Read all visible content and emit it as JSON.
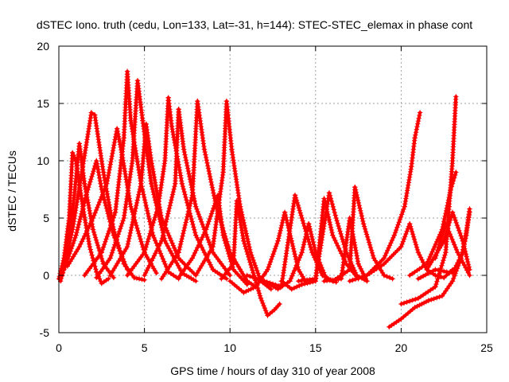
{
  "chart_data": {
    "type": "scatter",
    "title": "dSTEC Iono. truth (cedu, Lon=133, Lat=-31, h=144): STEC-STEC_elemax in phase cont",
    "xlabel": "GPS time / hours of day 310 of year 2008",
    "ylabel": "dSTEC  / TECUs",
    "xlim": [
      0,
      25
    ],
    "ylim": [
      -5,
      20
    ],
    "x_ticks": [
      "0",
      "5",
      "10",
      "15",
      "20",
      "25"
    ],
    "y_ticks": [
      "-5",
      "0",
      "5",
      "10",
      "15",
      "20"
    ],
    "grid": true,
    "marker": "+",
    "color": "#ff0000",
    "series": [
      {
        "arcs": [
          [
            0.0,
            -0.3
          ],
          [
            0.3,
            1.5
          ],
          [
            0.6,
            5.0
          ],
          [
            0.8,
            10.7
          ],
          [
            1.0,
            10.0
          ],
          [
            1.4,
            6.0
          ],
          [
            1.8,
            2.5
          ],
          [
            2.2,
            0.3
          ],
          [
            2.5,
            -0.7
          ],
          [
            2.9,
            -0.3
          ]
        ]
      },
      {
        "arcs": [
          [
            0.1,
            -0.5
          ],
          [
            0.5,
            2.0
          ],
          [
            0.9,
            7.0
          ],
          [
            1.2,
            11.5
          ],
          [
            1.5,
            8.0
          ],
          [
            2.0,
            4.0
          ],
          [
            2.6,
            1.0
          ],
          [
            3.2,
            -0.2
          ]
        ]
      },
      {
        "arcs": [
          [
            0.2,
            0.0
          ],
          [
            0.8,
            4.0
          ],
          [
            1.4,
            9.5
          ],
          [
            1.9,
            14.2
          ],
          [
            2.1,
            14.0
          ],
          [
            2.6,
            9.0
          ],
          [
            3.2,
            4.0
          ],
          [
            3.8,
            1.0
          ],
          [
            4.4,
            -0.2
          ],
          [
            5.0,
            -0.4
          ]
        ]
      },
      {
        "arcs": [
          [
            0.3,
            0.5
          ],
          [
            1.0,
            3.5
          ],
          [
            1.6,
            7.0
          ],
          [
            2.2,
            10.0
          ],
          [
            2.5,
            7.5
          ],
          [
            3.2,
            3.5
          ],
          [
            4.0,
            0.5
          ]
        ]
      },
      {
        "arcs": [
          [
            0.5,
            0.8
          ],
          [
            1.2,
            2.5
          ],
          [
            2.0,
            5.0
          ],
          [
            2.8,
            8.0
          ],
          [
            3.4,
            12.8
          ],
          [
            3.7,
            10.5
          ],
          [
            4.2,
            6.0
          ],
          [
            5.0,
            2.0
          ],
          [
            5.7,
            0.2
          ]
        ]
      },
      {
        "arcs": [
          [
            1.5,
            0.0
          ],
          [
            2.5,
            2.0
          ],
          [
            3.3,
            5.5
          ],
          [
            3.8,
            12.0
          ],
          [
            4.0,
            17.8
          ],
          [
            4.2,
            13.5
          ],
          [
            4.8,
            8.0
          ],
          [
            5.5,
            3.5
          ],
          [
            6.4,
            0.3
          ],
          [
            7.0,
            -0.3
          ]
        ]
      },
      {
        "arcs": [
          [
            2.2,
            -0.2
          ],
          [
            3.0,
            1.5
          ],
          [
            3.8,
            5.0
          ],
          [
            4.3,
            10.0
          ],
          [
            4.6,
            17.0
          ],
          [
            4.9,
            13.5
          ],
          [
            5.4,
            8.0
          ],
          [
            6.2,
            3.0
          ],
          [
            7.2,
            0.2
          ],
          [
            8.0,
            -0.5
          ]
        ]
      },
      {
        "arcs": [
          [
            3.0,
            0.0
          ],
          [
            4.0,
            2.5
          ],
          [
            4.8,
            8.0
          ],
          [
            5.1,
            13.2
          ],
          [
            5.4,
            10.0
          ],
          [
            6.0,
            5.0
          ],
          [
            7.0,
            1.5
          ],
          [
            8.0,
            0.0
          ]
        ]
      },
      {
        "arcs": [
          [
            4.0,
            0.0
          ],
          [
            5.0,
            2.0
          ],
          [
            5.8,
            6.0
          ],
          [
            6.2,
            10.0
          ],
          [
            6.4,
            15.5
          ],
          [
            6.6,
            13.0
          ],
          [
            7.2,
            8.0
          ],
          [
            8.0,
            3.5
          ],
          [
            9.0,
            0.5
          ],
          [
            9.8,
            -0.3
          ]
        ]
      },
      {
        "arcs": [
          [
            5.0,
            0.0
          ],
          [
            6.0,
            3.0
          ],
          [
            6.8,
            8.0
          ],
          [
            7.0,
            14.5
          ],
          [
            7.3,
            11.0
          ],
          [
            8.0,
            6.0
          ],
          [
            9.0,
            2.0
          ],
          [
            10.0,
            0.0
          ]
        ]
      },
      {
        "arcs": [
          [
            6.0,
            -0.3
          ],
          [
            7.0,
            2.0
          ],
          [
            7.8,
            7.0
          ],
          [
            8.1,
            15.2
          ],
          [
            8.5,
            11.0
          ],
          [
            9.2,
            6.0
          ],
          [
            10.0,
            2.0
          ],
          [
            11.0,
            -0.5
          ],
          [
            11.5,
            -1.0
          ]
        ]
      },
      {
        "arcs": [
          [
            7.0,
            -0.2
          ],
          [
            7.8,
            1.5
          ],
          [
            8.6,
            4.0
          ],
          [
            9.3,
            7.0
          ],
          [
            9.6,
            3.5
          ],
          [
            10.2,
            0.5
          ],
          [
            11.0,
            -0.8
          ]
        ]
      },
      {
        "arcs": [
          [
            8.0,
            0.0
          ],
          [
            9.0,
            2.5
          ],
          [
            9.6,
            9.0
          ],
          [
            9.8,
            15.2
          ],
          [
            10.1,
            11.0
          ],
          [
            10.6,
            6.0
          ],
          [
            11.2,
            2.0
          ],
          [
            11.8,
            -0.5
          ],
          [
            12.4,
            -1.2
          ]
        ]
      },
      {
        "arcs": [
          [
            9.5,
            -0.3
          ],
          [
            10.2,
            1.0
          ],
          [
            10.4,
            6.5
          ],
          [
            10.8,
            3.0
          ],
          [
            11.4,
            0.0
          ],
          [
            11.8,
            -2.0
          ],
          [
            12.2,
            -3.5
          ],
          [
            12.6,
            -3.0
          ],
          [
            12.9,
            -2.5
          ]
        ]
      },
      {
        "arcs": [
          [
            10.0,
            -0.5
          ],
          [
            10.8,
            -1.5
          ],
          [
            11.5,
            -1.0
          ],
          [
            12.2,
            0.5
          ],
          [
            12.8,
            3.0
          ],
          [
            13.2,
            5.5
          ],
          [
            13.6,
            3.0
          ],
          [
            14.0,
            0.5
          ],
          [
            14.4,
            -0.5
          ]
        ]
      },
      {
        "arcs": [
          [
            11.0,
            0.0
          ],
          [
            12.0,
            -0.5
          ],
          [
            12.8,
            -1.2
          ],
          [
            13.5,
            -0.5
          ],
          [
            14.2,
            2.0
          ],
          [
            14.6,
            4.5
          ],
          [
            15.0,
            2.0
          ],
          [
            15.6,
            -0.2
          ],
          [
            16.2,
            -0.6
          ]
        ]
      },
      {
        "arcs": [
          [
            12.0,
            -0.5
          ],
          [
            13.0,
            -1.0
          ],
          [
            13.8,
            7.0
          ],
          [
            14.2,
            5.0
          ],
          [
            14.8,
            2.0
          ],
          [
            15.4,
            0.0
          ],
          [
            16.0,
            -0.5
          ]
        ]
      },
      {
        "arcs": [
          [
            13.0,
            -0.5
          ],
          [
            13.6,
            -1.2
          ],
          [
            14.2,
            -0.8
          ],
          [
            15.0,
            -0.5
          ],
          [
            15.5,
            6.7
          ],
          [
            16.0,
            3.5
          ],
          [
            16.8,
            1.0
          ],
          [
            17.5,
            -0.3
          ]
        ]
      },
      {
        "arcs": [
          [
            14.0,
            -0.5
          ],
          [
            15.0,
            -0.3
          ],
          [
            15.8,
            7.2
          ],
          [
            16.2,
            5.0
          ],
          [
            16.8,
            2.0
          ],
          [
            17.4,
            0.0
          ],
          [
            18.0,
            -0.5
          ]
        ]
      },
      {
        "arcs": [
          [
            15.5,
            -0.5
          ],
          [
            16.5,
            -0.3
          ],
          [
            17.0,
            5.0
          ],
          [
            17.5,
            1.0
          ],
          [
            18.0,
            -0.5
          ]
        ]
      },
      {
        "arcs": [
          [
            16.0,
            -0.5
          ],
          [
            17.0,
            0.5
          ],
          [
            17.3,
            7.7
          ],
          [
            17.8,
            4.5
          ],
          [
            18.4,
            1.5
          ],
          [
            19.0,
            0.0
          ],
          [
            19.5,
            -0.3
          ]
        ]
      },
      {
        "arcs": [
          [
            17.0,
            -0.5
          ],
          [
            18.0,
            0.0
          ],
          [
            19.0,
            1.5
          ],
          [
            19.6,
            3.5
          ],
          [
            20.2,
            6.0
          ],
          [
            20.6,
            9.5
          ],
          [
            20.8,
            12.0
          ],
          [
            21.1,
            14.2
          ]
        ]
      },
      {
        "arcs": [
          [
            18.0,
            0.0
          ],
          [
            19.0,
            1.0
          ],
          [
            20.0,
            2.5
          ],
          [
            20.5,
            4.5
          ],
          [
            21.0,
            2.0
          ],
          [
            21.5,
            0.5
          ],
          [
            22.0,
            0.0
          ],
          [
            22.5,
            -0.2
          ],
          [
            23.0,
            0.5
          ]
        ]
      },
      {
        "arcs": [
          [
            19.3,
            -4.5
          ],
          [
            20.0,
            -3.8
          ],
          [
            20.8,
            -2.8
          ],
          [
            21.6,
            -2.2
          ],
          [
            22.4,
            -1.8
          ],
          [
            23.0,
            -0.5
          ],
          [
            23.5,
            1.5
          ],
          [
            23.8,
            3.5
          ],
          [
            24.0,
            5.8
          ]
        ]
      },
      {
        "arcs": [
          [
            20.0,
            -2.5
          ],
          [
            21.0,
            -2.0
          ],
          [
            22.0,
            -1.0
          ],
          [
            22.6,
            2.0
          ],
          [
            22.8,
            6.0
          ],
          [
            23.0,
            10.0
          ],
          [
            23.2,
            15.6
          ]
        ]
      },
      {
        "arcs": [
          [
            20.5,
            0.0
          ],
          [
            21.5,
            1.0
          ],
          [
            22.4,
            4.0
          ],
          [
            22.9,
            7.5
          ],
          [
            23.2,
            9.0
          ]
        ]
      },
      {
        "arcs": [
          [
            21.0,
            -0.3
          ],
          [
            22.0,
            0.5
          ],
          [
            23.0,
            0.2
          ],
          [
            23.6,
            2.0
          ],
          [
            24.0,
            5.5
          ]
        ]
      },
      {
        "arcs": [
          [
            21.5,
            0.5
          ],
          [
            22.5,
            3.0
          ],
          [
            23.0,
            5.5
          ],
          [
            23.6,
            3.0
          ],
          [
            24.0,
            0.5
          ]
        ]
      },
      {
        "arcs": [
          [
            22.0,
            1.5
          ],
          [
            22.6,
            4.5
          ],
          [
            23.3,
            2.0
          ],
          [
            24.0,
            0.0
          ]
        ]
      }
    ]
  }
}
